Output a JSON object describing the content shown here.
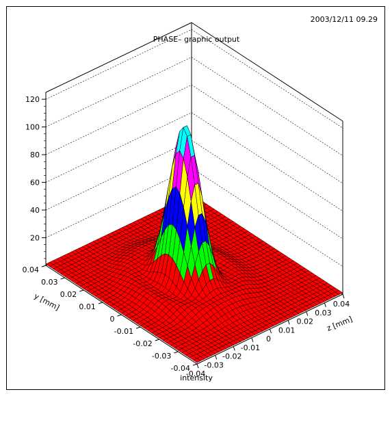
{
  "header": {
    "timestamp": "2003/12/11  09.29",
    "title": "PHASE– graphic output"
  },
  "colors": {
    "band0": "#ff0000",
    "band1": "#00ff00",
    "band2": "#0000ff",
    "band3": "#ffff00",
    "band4": "#ff00ff",
    "band5": "#00ffff",
    "mesh": "#000000"
  },
  "chart_data": {
    "type": "surface",
    "title": "PHASE– graphic output",
    "xlabel": "z [mm]",
    "ylabel": "y [mm]",
    "zlabel": "intensity",
    "xlim": [
      -0.04,
      0.04
    ],
    "ylim": [
      -0.04,
      0.04
    ],
    "zlim": [
      0,
      125
    ],
    "x_ticks": [
      "-0.04",
      "-0.03",
      "-0.02",
      "-0.01",
      "0",
      "0.01",
      "0.02",
      "0.03",
      "0.04"
    ],
    "y_ticks": [
      "-0.04",
      "-0.03",
      "-0.02",
      "-0.01",
      "0",
      "0.01",
      "0.02",
      "0.03",
      "0.04"
    ],
    "z_ticks": [
      "20",
      "40",
      "60",
      "80",
      "100",
      "120"
    ],
    "peak": {
      "z_center": -0.005,
      "y_center": 0.0,
      "max_intensity": 115
    },
    "color_levels": [
      0,
      20,
      40,
      60,
      80,
      100,
      120
    ]
  }
}
